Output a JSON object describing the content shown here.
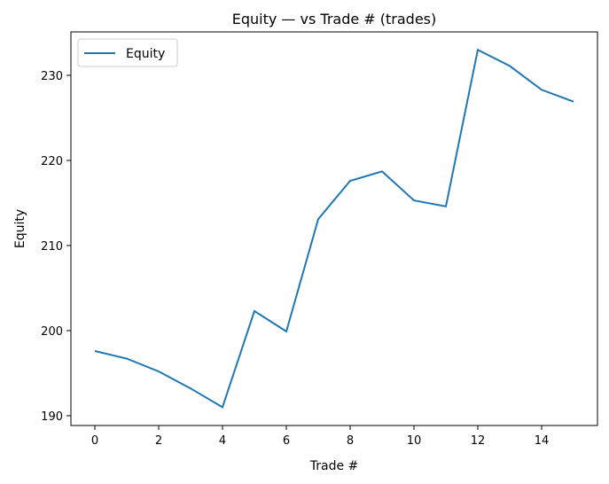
{
  "chart_data": {
    "type": "line",
    "title": "Equity — vs Trade # (trades)",
    "xlabel": "Trade #",
    "ylabel": "Equity",
    "x": [
      0,
      1,
      2,
      3,
      4,
      5,
      6,
      7,
      8,
      9,
      10,
      11,
      12,
      13,
      14,
      15
    ],
    "series": [
      {
        "name": "Equity",
        "color": "#1f77b4",
        "values": [
          197.6,
          196.7,
          195.2,
          193.2,
          191.0,
          202.3,
          199.9,
          213.1,
          217.6,
          218.7,
          215.3,
          214.6,
          233.0,
          231.1,
          228.3,
          226.9
        ]
      }
    ],
    "xlim": [
      -0.75,
      15.75
    ],
    "ylim": [
      188.85,
      235.1
    ],
    "xticks": [
      0,
      2,
      4,
      6,
      8,
      10,
      12,
      14
    ],
    "yticks": [
      190,
      200,
      210,
      220,
      230
    ],
    "grid": false,
    "legend": "upper-left"
  }
}
